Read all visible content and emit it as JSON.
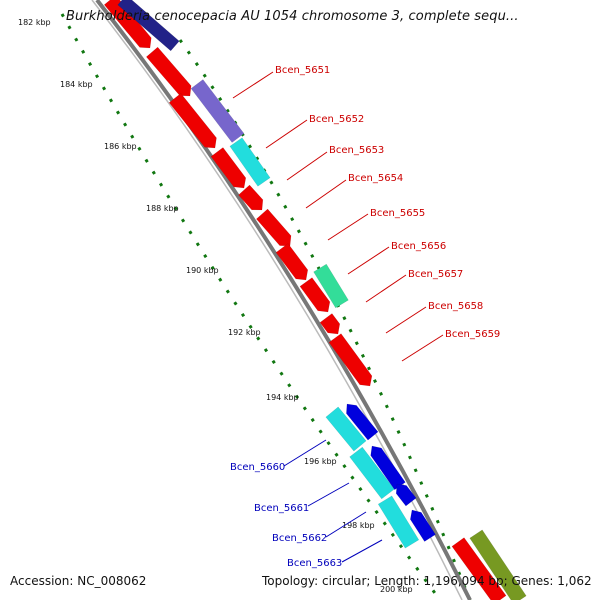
{
  "title": "Burkholderia cenocepacia AU 1054 chromosome 3, complete sequ...",
  "footer": {
    "accession": "Accession: NC_008062",
    "summary": "Topology: circular; Length: 1,196,094 bp; Genes: 1,062"
  },
  "tick_labels": [
    "182 kbp",
    "184 kbp",
    "186 kbp",
    "188 kbp",
    "190 kbp",
    "192 kbp",
    "194 kbp",
    "196 kbp",
    "198 kbp",
    "200 kbp"
  ],
  "genes_plus": [
    "Bcen_5651",
    "Bcen_5652",
    "Bcen_5653",
    "Bcen_5654",
    "Bcen_5655",
    "Bcen_5656",
    "Bcen_5657",
    "Bcen_5658",
    "Bcen_5659"
  ],
  "genes_minus": [
    "Bcen_5660",
    "Bcen_5661",
    "Bcen_5662",
    "Bcen_5663"
  ],
  "colors": {
    "cds": "#ee0000",
    "cds_minus": "#0000dd",
    "cog_purple": "#7766cc",
    "cog_cyan": "#22dddd",
    "cog_green": "#33dd99",
    "cog_olive": "#779922",
    "navy": "#222288",
    "backbone": "#888888",
    "tick": "#117711",
    "label_plus": "#cc0000",
    "label_minus": "#0000bb"
  }
}
